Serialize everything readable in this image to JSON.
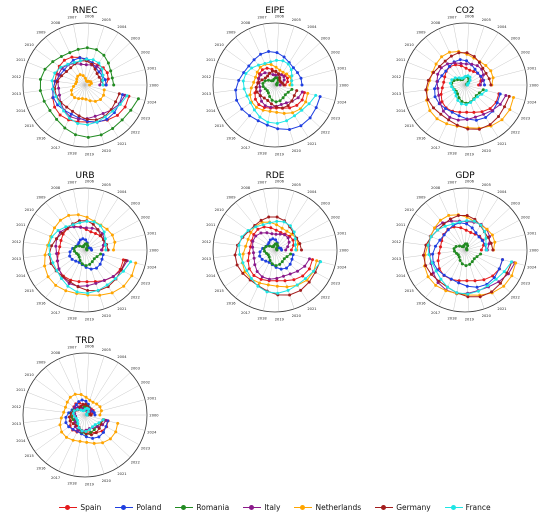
{
  "years": [
    "2000",
    "2001",
    "2002",
    "2003",
    "2004",
    "2005",
    "2006",
    "2007",
    "2008",
    "2009",
    "2010",
    "2011",
    "2012",
    "2013",
    "2014",
    "2015",
    "2016",
    "2017",
    "2018",
    "2019",
    "2020",
    "2021",
    "2022",
    "2023",
    "2024"
  ],
  "countries": [
    {
      "name": "Spain",
      "color": "#e41a1c"
    },
    {
      "name": "Poland",
      "color": "#1f3fe0"
    },
    {
      "name": "Romania",
      "color": "#228b22"
    },
    {
      "name": "Italy",
      "color": "#8b1a8b"
    },
    {
      "name": "Netherlands",
      "color": "#ffa500"
    },
    {
      "name": "Germany",
      "color": "#a31d1d"
    },
    {
      "name": "France",
      "color": "#1ee5e5"
    }
  ],
  "chart_data": [
    {
      "type": "line",
      "title": "RNEC",
      "series": [
        {
          "name": "Spain",
          "base": 0.62
        },
        {
          "name": "Poland",
          "base": 0.55
        },
        {
          "name": "Romania",
          "base": 0.86
        },
        {
          "name": "Italy",
          "base": 0.5
        },
        {
          "name": "Netherlands",
          "base": 0.1
        },
        {
          "name": "Germany",
          "base": 0.48
        },
        {
          "name": "France",
          "base": 0.58
        }
      ]
    },
    {
      "type": "line",
      "title": "EIPE",
      "series": [
        {
          "name": "Spain",
          "base": 0.3
        },
        {
          "name": "Poland",
          "base": 0.72
        },
        {
          "name": "Romania",
          "base": 0.05
        },
        {
          "name": "Italy",
          "base": 0.22
        },
        {
          "name": "Netherlands",
          "base": 0.4
        },
        {
          "name": "Germany",
          "base": 0.2
        },
        {
          "name": "France",
          "base": 0.55
        }
      ]
    },
    {
      "type": "line",
      "title": "CO2",
      "series": [
        {
          "name": "Spain",
          "base": 0.4
        },
        {
          "name": "Poland",
          "base": 0.5
        },
        {
          "name": "Romania",
          "base": 0.08
        },
        {
          "name": "Italy",
          "base": 0.52
        },
        {
          "name": "Netherlands",
          "base": 0.75
        },
        {
          "name": "Germany",
          "base": 0.7
        },
        {
          "name": "France",
          "base": 0.12
        }
      ]
    },
    {
      "type": "line",
      "title": "URB",
      "series": [
        {
          "name": "Spain",
          "base": 0.5
        },
        {
          "name": "Poland",
          "base": 0.12
        },
        {
          "name": "Romania",
          "base": 0.02
        },
        {
          "name": "Italy",
          "base": 0.55
        },
        {
          "name": "Netherlands",
          "base": 0.8
        },
        {
          "name": "Germany",
          "base": 0.62
        },
        {
          "name": "France",
          "base": 0.66
        }
      ]
    },
    {
      "type": "line",
      "title": "RDE",
      "series": [
        {
          "name": "Spain",
          "base": 0.48
        },
        {
          "name": "Poland",
          "base": 0.12
        },
        {
          "name": "Romania",
          "base": 0.02
        },
        {
          "name": "Italy",
          "base": 0.38
        },
        {
          "name": "Netherlands",
          "base": 0.6
        },
        {
          "name": "Germany",
          "base": 0.72
        },
        {
          "name": "France",
          "base": 0.66
        }
      ]
    },
    {
      "type": "line",
      "title": "GDP",
      "series": [
        {
          "name": "Spain",
          "base": 0.48
        },
        {
          "name": "Poland",
          "base": 0.55
        },
        {
          "name": "Romania",
          "base": 0.02
        },
        {
          "name": "Italy",
          "base": 0.72
        },
        {
          "name": "Netherlands",
          "base": 0.8
        },
        {
          "name": "Germany",
          "base": 0.76
        },
        {
          "name": "France",
          "base": 0.68
        }
      ]
    },
    {
      "type": "line",
      "title": "TRD",
      "series": [
        {
          "name": "Spain",
          "base": 0.16
        },
        {
          "name": "Poland",
          "base": 0.22
        },
        {
          "name": "Romania",
          "base": 0.1
        },
        {
          "name": "Italy",
          "base": 0.08
        },
        {
          "name": "Netherlands",
          "base": 0.4
        },
        {
          "name": "Germany",
          "base": 0.12
        },
        {
          "name": "France",
          "base": 0.05
        }
      ]
    }
  ]
}
